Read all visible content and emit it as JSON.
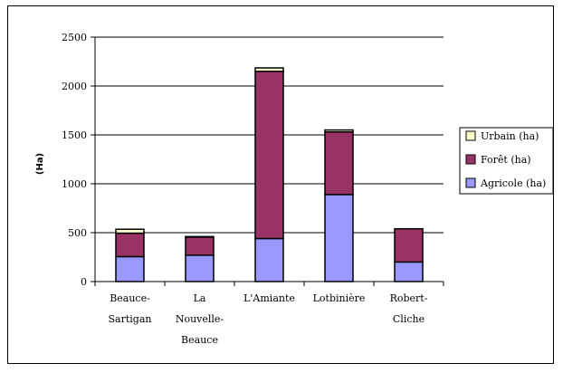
{
  "chart_data": {
    "type": "bar",
    "stacked": true,
    "title": "",
    "ylabel": "(Ha)",
    "xlabel": "",
    "ylim": [
      0,
      2500
    ],
    "yticks": [
      0,
      500,
      1000,
      1500,
      2000,
      2500
    ],
    "categories": [
      [
        "Beauce-",
        "Sartigan"
      ],
      [
        "La",
        "Nouvelle-",
        "Beauce"
      ],
      [
        "L'Amiante"
      ],
      [
        "Lotbinière"
      ],
      [
        "Robert-",
        "Cliche"
      ]
    ],
    "series": [
      {
        "name": "Agricole (ha)",
        "color": "#9999ff",
        "values": [
          255,
          270,
          440,
          890,
          200
        ]
      },
      {
        "name": "Forêt (ha)",
        "color": "#993366",
        "values": [
          240,
          185,
          1710,
          640,
          340
        ]
      },
      {
        "name": "Urbain (ha)",
        "color": "#ffffcc",
        "values": [
          40,
          5,
          35,
          20,
          0
        ]
      }
    ],
    "legend_order": [
      2,
      1,
      0
    ],
    "legend_position": "right",
    "grid": true
  }
}
